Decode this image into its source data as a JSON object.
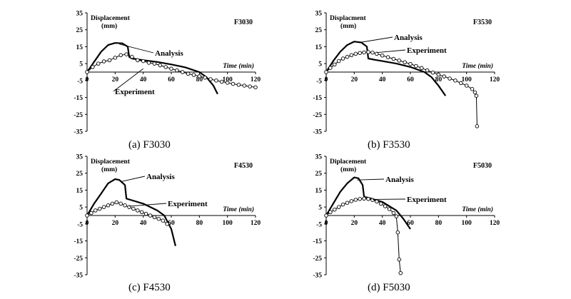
{
  "chart_data": [
    {
      "type": "line",
      "panel_id": "a",
      "specimen_label": "F3030",
      "caption": "(a)  F3030",
      "ylabel": "Displacement\n(mm)",
      "xlabel": "Time (min)",
      "xlim": [
        0,
        120
      ],
      "ylim": [
        -35,
        35
      ],
      "xticks": [
        "0",
        "20",
        "40",
        "60",
        "80",
        "100",
        "120"
      ],
      "yticks": [
        "35",
        "25",
        "15",
        "5",
        "-5",
        "-15",
        "-25",
        "-35"
      ],
      "grid": false,
      "series": [
        {
          "name": "Analysis",
          "marker": "none",
          "x": [
            0,
            5,
            10,
            15,
            20,
            25,
            29,
            30,
            32,
            40,
            50,
            60,
            70,
            80,
            85,
            90,
            93
          ],
          "y": [
            0,
            6,
            12,
            16,
            17.2,
            17,
            15,
            9,
            8,
            7,
            6,
            4.5,
            2.8,
            0,
            -3,
            -8,
            -13
          ]
        },
        {
          "name": "Experiment",
          "marker": "circle",
          "x": [
            0,
            4,
            8,
            12,
            16,
            20,
            24,
            28,
            32,
            36,
            40,
            44,
            48,
            52,
            56,
            60,
            64,
            68,
            72,
            76,
            80,
            84,
            88,
            92,
            96,
            100,
            104,
            108,
            112,
            116,
            120
          ],
          "y": [
            0,
            3,
            5,
            6.3,
            7,
            8.5,
            10,
            10.5,
            9,
            7,
            6.5,
            5.5,
            5,
            4,
            3,
            2,
            1,
            0,
            -1,
            -1.7,
            -2.5,
            -3.3,
            -4.2,
            -5,
            -5.7,
            -6.3,
            -7,
            -7.5,
            -8,
            -8.5,
            -9
          ]
        }
      ],
      "annotations": {
        "analysis_label": "Analysis",
        "experiment_label": "Experiment"
      }
    },
    {
      "type": "line",
      "panel_id": "b",
      "specimen_label": "F3530",
      "caption": "(b)  F3530",
      "ylabel": "Displacment\n(mm)",
      "xlabel": "Time (min)",
      "xlim": [
        0,
        120
      ],
      "ylim": [
        -35,
        35
      ],
      "xticks": [
        "0",
        "20",
        "40",
        "60",
        "80",
        "100",
        "120"
      ],
      "yticks": [
        "35",
        "25",
        "15",
        "5",
        "-5",
        "-15",
        "-25",
        "-35"
      ],
      "grid": false,
      "series": [
        {
          "name": "Analysis",
          "marker": "none",
          "x": [
            0,
            5,
            10,
            15,
            20,
            25,
            29,
            30,
            35,
            40,
            50,
            60,
            70,
            75,
            80,
            85
          ],
          "y": [
            0,
            6.5,
            12,
            16,
            18,
            17.5,
            15,
            8,
            7.2,
            6.5,
            5,
            3,
            0,
            -3,
            -8,
            -14
          ]
        },
        {
          "name": "Experiment",
          "marker": "circle",
          "x": [
            0,
            3,
            6,
            9,
            12,
            15,
            18,
            21,
            24,
            27,
            30,
            33,
            36,
            40,
            44,
            48,
            52,
            56,
            60,
            64,
            68,
            72,
            76,
            80,
            84,
            88,
            92,
            96,
            100,
            104,
            106,
            107,
            107.5
          ],
          "y": [
            0,
            2.5,
            4.5,
            6.5,
            8,
            9,
            10,
            10.8,
            11.3,
            11.6,
            11.8,
            11.5,
            10.8,
            9.8,
            8.8,
            7.8,
            6.8,
            5.8,
            4.8,
            3.6,
            2.4,
            1,
            -0.3,
            -1.5,
            -2.6,
            -3.8,
            -5,
            -6.5,
            -8,
            -10,
            -12,
            -14,
            -32
          ]
        }
      ],
      "annotations": {
        "analysis_label": "Analysis",
        "experiment_label": "Experiment"
      }
    },
    {
      "type": "line",
      "panel_id": "c",
      "specimen_label": "F4530",
      "caption": "(c)  F4530",
      "ylabel": "Displacement\n(mm)",
      "xlabel": "Time (min)",
      "xlim": [
        0,
        120
      ],
      "ylim": [
        -35,
        35
      ],
      "xticks": [
        "0",
        "20",
        "40",
        "60",
        "80",
        "100",
        "120"
      ],
      "yticks": [
        "35",
        "25",
        "15",
        "5",
        "-5",
        "-15",
        "-25",
        "-35"
      ],
      "grid": false,
      "series": [
        {
          "name": "Analysis",
          "marker": "none",
          "x": [
            0,
            5,
            10,
            15,
            20,
            23,
            27,
            28,
            30,
            40,
            50,
            55,
            60,
            63
          ],
          "y": [
            0,
            7,
            13,
            19,
            21.5,
            21,
            18,
            10,
            9.5,
            7,
            3,
            0,
            -8,
            -18
          ]
        },
        {
          "name": "Experiment",
          "marker": "circle",
          "x": [
            0,
            3,
            6,
            9,
            12,
            15,
            18,
            21,
            24,
            27,
            30,
            33,
            36,
            39,
            42,
            45,
            48,
            51,
            54,
            57
          ],
          "y": [
            0,
            1.5,
            3,
            4,
            5,
            6,
            7,
            7.8,
            7,
            6,
            5,
            4,
            3,
            2,
            1,
            0,
            -1,
            -2,
            -3,
            -5
          ]
        }
      ],
      "annotations": {
        "analysis_label": "Analysis",
        "experiment_label": "Experiment"
      }
    },
    {
      "type": "line",
      "panel_id": "d",
      "specimen_label": "F5030",
      "caption": "(d)  F5030",
      "ylabel": "Diplacement\n(mm)",
      "xlabel": "Time (min)",
      "xlim": [
        0,
        120
      ],
      "ylim": [
        -35,
        35
      ],
      "xticks": [
        "0",
        "20",
        "40",
        "60",
        "80",
        "100",
        "120"
      ],
      "yticks": [
        "35",
        "25",
        "15",
        "5",
        "-5",
        "-15",
        "-25",
        "-35"
      ],
      "grid": false,
      "series": [
        {
          "name": "Analysis",
          "marker": "none",
          "x": [
            0,
            5,
            10,
            15,
            20,
            23,
            26,
            27,
            30,
            40,
            50,
            55,
            60
          ],
          "y": [
            0,
            7,
            14,
            19,
            22.5,
            22,
            18,
            11,
            10.5,
            8,
            3,
            -2,
            -8
          ]
        },
        {
          "name": "Experiment",
          "marker": "circle",
          "x": [
            0,
            3,
            6,
            9,
            12,
            15,
            18,
            21,
            24,
            27,
            30,
            33,
            36,
            39,
            42,
            45,
            48,
            50,
            51,
            52,
            53
          ],
          "y": [
            0,
            2,
            3.5,
            5,
            6.5,
            7.5,
            8.5,
            9.3,
            9.8,
            10,
            9.8,
            9.2,
            8.3,
            7,
            5.5,
            3.8,
            1.5,
            -0.5,
            -10,
            -26,
            -34
          ]
        }
      ],
      "annotations": {
        "analysis_label": "Analysis",
        "experiment_label": "Experiment"
      }
    }
  ]
}
